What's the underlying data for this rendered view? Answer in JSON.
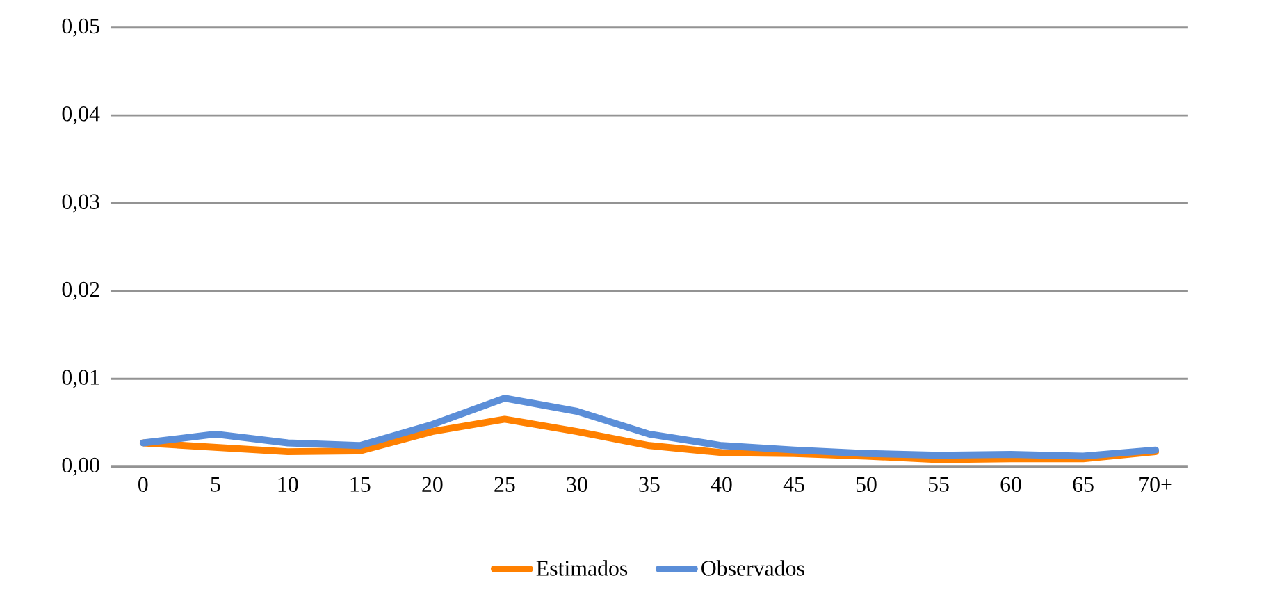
{
  "chart_data": {
    "type": "line",
    "categories": [
      "0",
      "5",
      "10",
      "15",
      "20",
      "25",
      "30",
      "35",
      "40",
      "45",
      "50",
      "55",
      "60",
      "65",
      "70+"
    ],
    "series": [
      {
        "name": "Estimados",
        "color": "#ff8000",
        "values": [
          0.0027,
          0.0022,
          0.0017,
          0.0018,
          0.004,
          0.0054,
          0.004,
          0.0024,
          0.0016,
          0.0015,
          0.0012,
          0.0008,
          0.0009,
          0.0009,
          0.0017
        ]
      },
      {
        "name": "Observados",
        "color": "#5b8ed8",
        "values": [
          0.0027,
          0.0037,
          0.0027,
          0.0024,
          0.0048,
          0.0078,
          0.0063,
          0.0037,
          0.0024,
          0.0019,
          0.0015,
          0.0013,
          0.0014,
          0.0012,
          0.0019
        ]
      }
    ],
    "ylim": [
      0,
      0.05
    ],
    "yticks": [
      {
        "value": 0,
        "label": "0,00"
      },
      {
        "value": 0.01,
        "label": "0,01"
      },
      {
        "value": 0.02,
        "label": "0,02"
      },
      {
        "value": 0.03,
        "label": "0,03"
      },
      {
        "value": 0.04,
        "label": "0,04"
      },
      {
        "value": 0.05,
        "label": "0,05"
      }
    ],
    "grid": "y",
    "legend": "bottom",
    "marker": "none",
    "line_style": "solid"
  }
}
